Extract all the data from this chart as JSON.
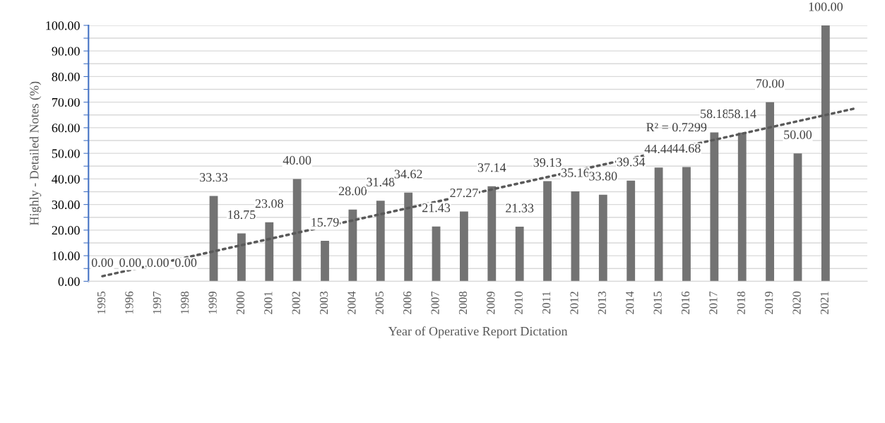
{
  "chart_data": {
    "type": "bar",
    "xlabel": "Year of Operative Report Dictation",
    "ylabel": "Highly - Detailed Notes (%)",
    "x": [
      1995,
      1996,
      1997,
      1998,
      1999,
      2000,
      2001,
      2002,
      2003,
      2004,
      2005,
      2006,
      2007,
      2008,
      2009,
      2010,
      2011,
      2012,
      2013,
      2014,
      2015,
      2016,
      2017,
      2018,
      2019,
      2020,
      2021
    ],
    "xlim": [
      1994.5,
      2022.5
    ],
    "xticks": [
      1995,
      1996,
      1997,
      1998,
      1999,
      2000,
      2001,
      2002,
      2003,
      2004,
      2005,
      2006,
      2007,
      2008,
      2009,
      2010,
      2011,
      2012,
      2013,
      2014,
      2015,
      2016,
      2017,
      2018,
      2019,
      2020,
      2021
    ],
    "ylim": [
      0,
      100
    ],
    "yticks": [
      {
        "value": 0,
        "label": "0.00"
      },
      {
        "value": 5,
        "label": null
      },
      {
        "value": 10,
        "label": "10.00"
      },
      {
        "value": 15,
        "label": null
      },
      {
        "value": 20,
        "label": "20.00"
      },
      {
        "value": 25,
        "label": null
      },
      {
        "value": 30,
        "label": "30.00"
      },
      {
        "value": 35,
        "label": null
      },
      {
        "value": 40,
        "label": "40.00"
      },
      {
        "value": 45,
        "label": null
      },
      {
        "value": 50,
        "label": "50.00"
      },
      {
        "value": 55,
        "label": null
      },
      {
        "value": 60,
        "label": "60.00"
      },
      {
        "value": 65,
        "label": null
      },
      {
        "value": 70,
        "label": "70.00"
      },
      {
        "value": 75,
        "label": null
      },
      {
        "value": 80,
        "label": "80.00"
      },
      {
        "value": 85,
        "label": null
      },
      {
        "value": 90,
        "label": "90.00"
      },
      {
        "value": 95,
        "label": null
      },
      {
        "value": 100,
        "label": "100.00"
      }
    ],
    "grid": "y",
    "legend": false,
    "series": [
      {
        "color": "#737373",
        "values": [
          0,
          0,
          0,
          0,
          33.33,
          18.75,
          23.08,
          40,
          15.79,
          28,
          31.48,
          34.62,
          21.43,
          27.27,
          37.14,
          21.33,
          39.13,
          35.16,
          33.8,
          39.34,
          44.44,
          44.68,
          58.18,
          58.14,
          70,
          50,
          100
        ],
        "value_labels": [
          "0.00",
          "0.00",
          "0.00",
          "0.00",
          "33.33",
          "18.75",
          "23.08",
          "40.00",
          "15.79",
          "28.00",
          "31.48",
          "34.62",
          "21.43",
          "27.27",
          "37.14",
          "21.33",
          "39.13",
          "35.16",
          "33.80",
          "39.34",
          "44.44",
          "44.68",
          "58.18",
          "58.14",
          "70.00",
          "50.00",
          "100.00"
        ]
      },
      {
        "type": "line",
        "color": "#595959",
        "line_style": "dotted",
        "x": [
          1995,
          2022
        ],
        "values": [
          2.0,
          67.4
        ]
      }
    ],
    "annotations": [
      "R² = 0.7299"
    ]
  }
}
